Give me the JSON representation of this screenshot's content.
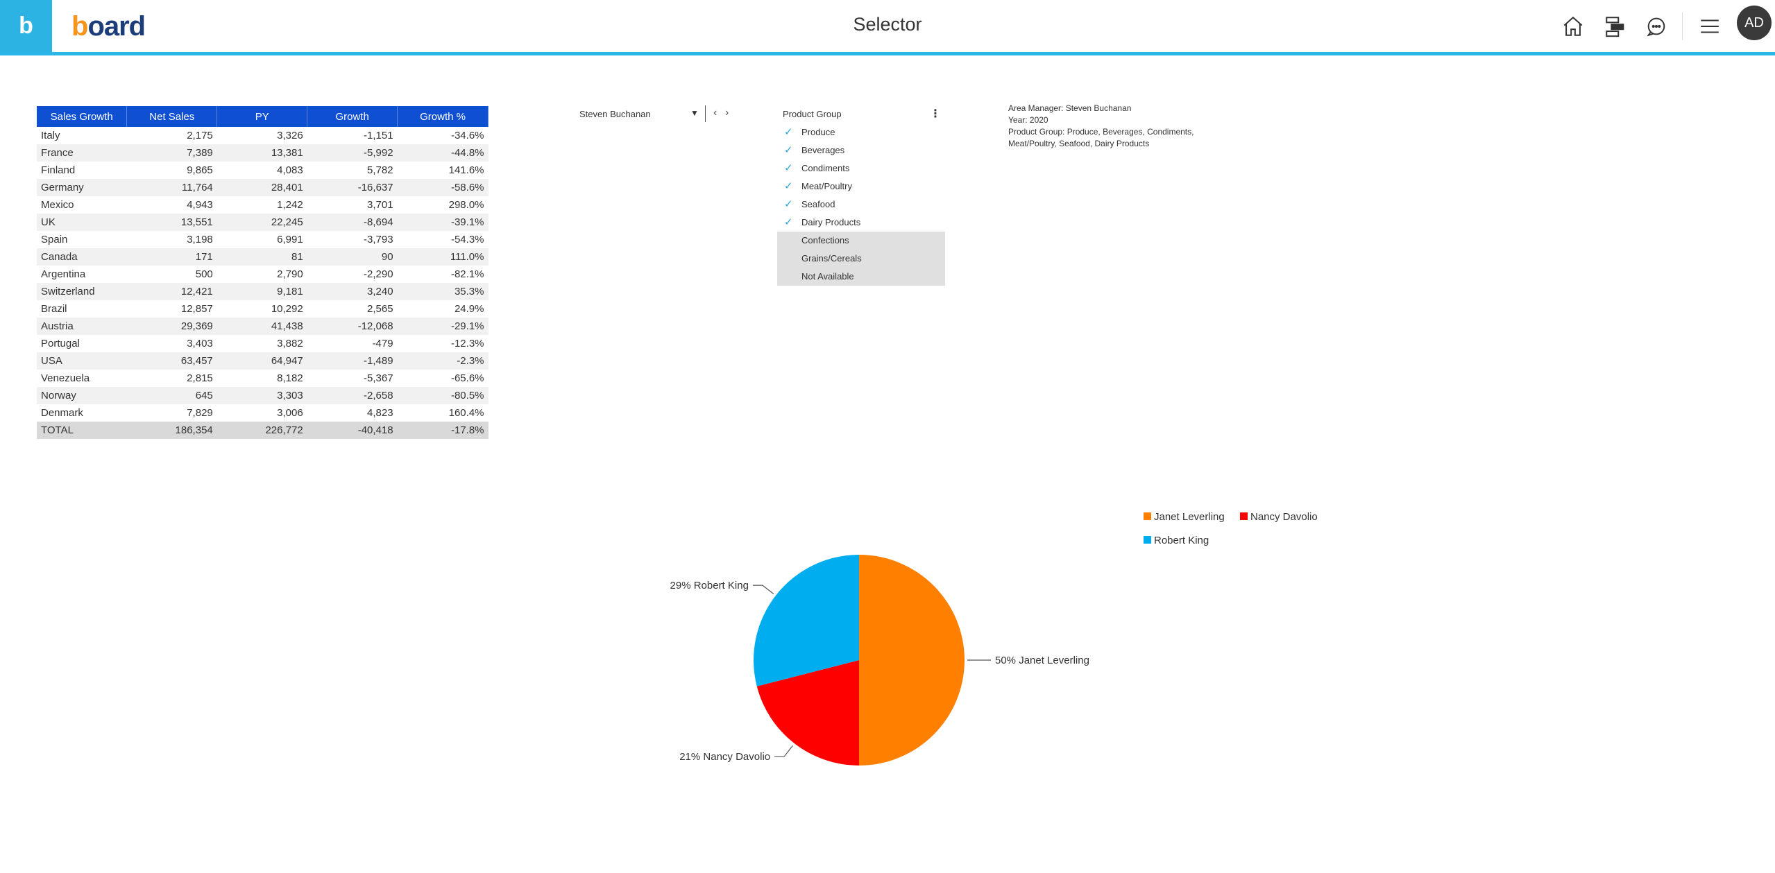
{
  "app": {
    "brand_tile": "b",
    "logo_a": "b",
    "logo_b": "oard",
    "title": "Selector"
  },
  "header_icons": [
    "home-icon",
    "hierarchy-icon",
    "chat-icon",
    "menu-icon"
  ],
  "user": {
    "initials": "AD"
  },
  "table": {
    "headers": [
      "Sales Growth",
      "Net Sales",
      "PY",
      "Growth",
      "Growth %"
    ],
    "rows": [
      [
        "Italy",
        "2,175",
        "3,326",
        "-1,151",
        "-34.6%"
      ],
      [
        "France",
        "7,389",
        "13,381",
        "-5,992",
        "-44.8%"
      ],
      [
        "Finland",
        "9,865",
        "4,083",
        "5,782",
        "141.6%"
      ],
      [
        "Germany",
        "11,764",
        "28,401",
        "-16,637",
        "-58.6%"
      ],
      [
        "Mexico",
        "4,943",
        "1,242",
        "3,701",
        "298.0%"
      ],
      [
        "UK",
        "13,551",
        "22,245",
        "-8,694",
        "-39.1%"
      ],
      [
        "Spain",
        "3,198",
        "6,991",
        "-3,793",
        "-54.3%"
      ],
      [
        "Canada",
        "171",
        "81",
        "90",
        "111.0%"
      ],
      [
        "Argentina",
        "500",
        "2,790",
        "-2,290",
        "-82.1%"
      ],
      [
        "Switzerland",
        "12,421",
        "9,181",
        "3,240",
        "35.3%"
      ],
      [
        "Brazil",
        "12,857",
        "10,292",
        "2,565",
        "24.9%"
      ],
      [
        "Austria",
        "29,369",
        "41,438",
        "-12,068",
        "-29.1%"
      ],
      [
        "Portugal",
        "3,403",
        "3,882",
        "-479",
        "-12.3%"
      ],
      [
        "USA",
        "63,457",
        "64,947",
        "-1,489",
        "-2.3%"
      ],
      [
        "Venezuela",
        "2,815",
        "8,182",
        "-5,367",
        "-65.6%"
      ],
      [
        "Norway",
        "645",
        "3,303",
        "-2,658",
        "-80.5%"
      ],
      [
        "Denmark",
        "7,829",
        "3,006",
        "4,823",
        "160.4%"
      ]
    ],
    "total": [
      "TOTAL",
      "186,354",
      "226,772",
      "-40,418",
      "-17.8%"
    ]
  },
  "selector": {
    "value": "Steven Buchanan"
  },
  "product_group": {
    "title": "Product Group",
    "items": [
      {
        "label": "Produce",
        "selected": true
      },
      {
        "label": "Beverages",
        "selected": true
      },
      {
        "label": "Condiments",
        "selected": true
      },
      {
        "label": "Meat/Poultry",
        "selected": true
      },
      {
        "label": "Seafood",
        "selected": true
      },
      {
        "label": "Dairy Products",
        "selected": true
      },
      {
        "label": "Confections",
        "selected": false
      },
      {
        "label": "Grains/Cereals",
        "selected": false
      },
      {
        "label": "Not Available",
        "selected": false
      }
    ]
  },
  "info": {
    "line1": "Area Manager: Steven Buchanan",
    "line2": "Year: 2020",
    "line3": "Product Group: Produce, Beverages, Condiments,",
    "line4": "Meat/Poultry, Seafood, Dairy Products"
  },
  "chart_data": {
    "type": "pie",
    "series": [
      {
        "name": "Janet Leverling",
        "value": 50,
        "label": "50% Janet Leverling",
        "color": "#ff8000"
      },
      {
        "name": "Nancy Davolio",
        "value": 21,
        "label": "21% Nancy Davolio",
        "color": "#ff0000"
      },
      {
        "name": "Robert King",
        "value": 29,
        "label": "29% Robert King",
        "color": "#00aeef"
      }
    ],
    "legend_position": "top-right"
  }
}
